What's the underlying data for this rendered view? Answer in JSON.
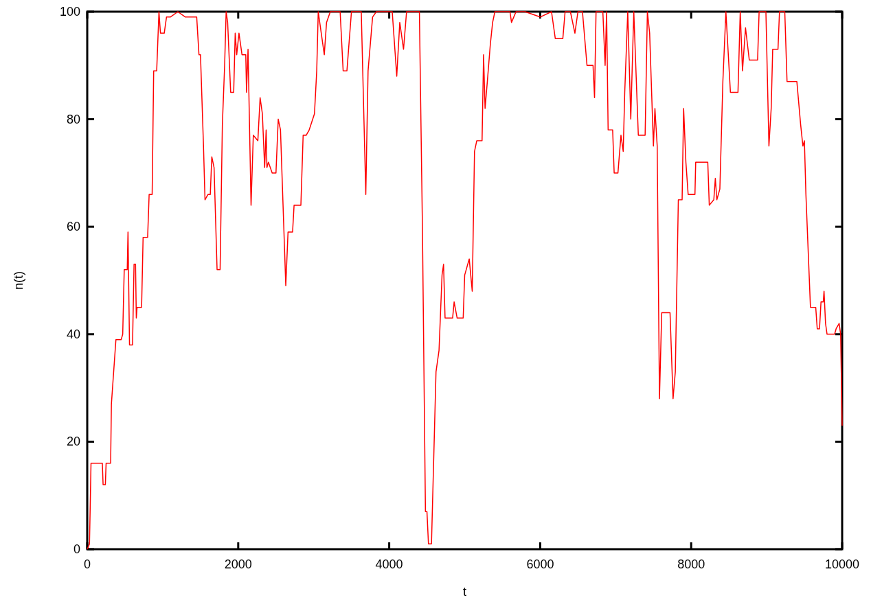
{
  "chart_data": {
    "type": "line",
    "xlabel": "t",
    "ylabel": "n(t)",
    "xlim": [
      0,
      10000
    ],
    "xticks": [
      0,
      2000,
      4000,
      6000,
      8000,
      10000
    ],
    "ylim": [
      0,
      100
    ],
    "yticks": [
      0,
      20,
      40,
      60,
      80,
      100
    ],
    "grid": false,
    "marker": "none",
    "line_style": "solid",
    "series": [
      {
        "color": "#ff0000",
        "x": [
          0,
          30,
          50,
          200,
          210,
          240,
          250,
          310,
          320,
          340,
          380,
          450,
          470,
          490,
          530,
          540,
          560,
          600,
          620,
          640,
          650,
          660,
          720,
          740,
          800,
          820,
          860,
          880,
          920,
          950,
          970,
          1020,
          1050,
          1100,
          1200,
          1300,
          1450,
          1480,
          1500,
          1540,
          1560,
          1600,
          1630,
          1650,
          1680,
          1720,
          1760,
          1790,
          1820,
          1840,
          1860,
          1900,
          1940,
          1960,
          1980,
          2010,
          2050,
          2100,
          2110,
          2130,
          2170,
          2200,
          2260,
          2290,
          2320,
          2350,
          2370,
          2380,
          2400,
          2450,
          2500,
          2530,
          2560,
          2630,
          2660,
          2720,
          2740,
          2830,
          2860,
          2900,
          2940,
          3010,
          3040,
          3060,
          3100,
          3140,
          3170,
          3220,
          3350,
          3390,
          3440,
          3500,
          3630,
          3690,
          3720,
          3780,
          3830,
          4040,
          4100,
          4140,
          4190,
          4230,
          4400,
          4440,
          4480,
          4500,
          4520,
          4560,
          4620,
          4660,
          4700,
          4720,
          4740,
          4840,
          4860,
          4900,
          4980,
          5000,
          5060,
          5100,
          5130,
          5160,
          5230,
          5250,
          5270,
          5300,
          5340,
          5370,
          5400,
          5600,
          5620,
          5680,
          5800,
          6000,
          6150,
          6200,
          6300,
          6330,
          6400,
          6460,
          6500,
          6560,
          6620,
          6700,
          6720,
          6740,
          6830,
          6860,
          6880,
          6900,
          6960,
          6980,
          7030,
          7070,
          7100,
          7120,
          7160,
          7200,
          7240,
          7300,
          7390,
          7420,
          7450,
          7500,
          7520,
          7550,
          7580,
          7610,
          7720,
          7760,
          7790,
          7800,
          7830,
          7880,
          7900,
          7930,
          7960,
          8050,
          8060,
          8220,
          8240,
          8300,
          8320,
          8340,
          8380,
          8420,
          8460,
          8520,
          8620,
          8650,
          8680,
          8720,
          8770,
          8880,
          8900,
          8990,
          9030,
          9060,
          9080,
          9150,
          9170,
          9240,
          9270,
          9400,
          9450,
          9480,
          9500,
          9520,
          9580,
          9650,
          9670,
          9700,
          9720,
          9750,
          9760,
          9780,
          9800,
          9900,
          9920,
          9960,
          9980,
          10000
        ],
        "values": [
          0,
          1,
          16,
          16,
          12,
          12,
          16,
          16,
          27,
          31,
          39,
          39,
          40,
          52,
          52,
          59,
          38,
          38,
          53,
          53,
          43,
          45,
          45,
          58,
          58,
          66,
          66,
          89,
          89,
          100,
          96,
          96,
          99,
          99,
          100,
          99,
          99,
          92,
          92,
          75,
          65,
          66,
          66,
          73,
          71,
          52,
          52,
          79,
          90,
          100,
          98,
          85,
          85,
          96,
          92,
          96,
          92,
          92,
          85,
          93,
          64,
          77,
          76,
          84,
          81,
          71,
          78,
          71,
          72,
          70,
          70,
          80,
          78,
          49,
          59,
          59,
          64,
          64,
          77,
          77,
          78,
          81,
          89,
          100,
          96,
          92,
          98,
          100,
          100,
          89,
          89,
          100,
          100,
          66,
          89,
          99,
          100,
          100,
          88,
          98,
          93,
          100,
          100,
          60,
          7,
          7,
          1,
          1,
          33,
          37,
          51,
          53,
          43,
          43,
          46,
          43,
          43,
          51,
          54,
          48,
          74,
          76,
          76,
          92,
          82,
          87,
          94,
          98,
          100,
          100,
          98,
          100,
          100,
          99,
          100,
          95,
          95,
          100,
          100,
          96,
          100,
          100,
          90,
          90,
          84,
          100,
          100,
          90,
          100,
          78,
          78,
          70,
          70,
          77,
          74,
          85,
          100,
          80,
          100,
          77,
          77,
          100,
          96,
          75,
          82,
          75,
          28,
          44,
          44,
          28,
          33,
          41,
          65,
          65,
          82,
          72,
          66,
          66,
          72,
          72,
          64,
          65,
          69,
          65,
          67,
          87,
          100,
          85,
          85,
          100,
          89,
          97,
          91,
          91,
          100,
          100,
          75,
          82,
          93,
          93,
          100,
          100,
          87,
          87,
          79,
          75,
          76,
          66,
          45,
          45,
          41,
          41,
          46,
          46,
          48,
          42,
          40,
          40,
          41,
          42,
          40,
          23
        ]
      }
    ]
  }
}
